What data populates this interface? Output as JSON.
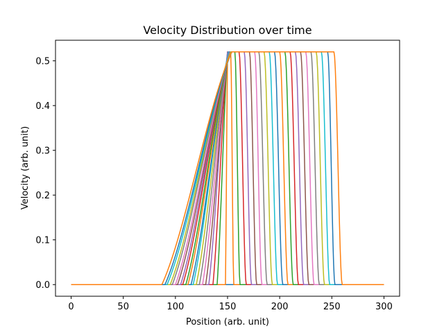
{
  "chart_data": {
    "type": "line",
    "title": "Velocity Distribution over time",
    "xlabel": "Position (arb. unit)",
    "ylabel": "Velocity (arb. unit)",
    "xlim": [
      -15,
      315
    ],
    "ylim": [
      -0.026,
      0.546
    ],
    "x_ticks": [
      0,
      50,
      100,
      150,
      200,
      250,
      300
    ],
    "y_ticks": [
      0.0,
      0.1,
      0.2,
      0.3,
      0.4,
      0.5
    ],
    "x_tick_labels": [
      "0",
      "50",
      "100",
      "150",
      "200",
      "250",
      "300"
    ],
    "y_tick_labels": [
      "0.0",
      "0.1",
      "0.2",
      "0.3",
      "0.4",
      "0.5"
    ],
    "grid": false,
    "legend": "none",
    "colors": [
      "#1f77b4",
      "#ff7f0e",
      "#2ca02c",
      "#d62728",
      "#9467bd",
      "#8c564b",
      "#e377c2",
      "#7f7f7f",
      "#bcbd22",
      "#17becf"
    ],
    "plateau_value": 0.52,
    "series": [
      {
        "x": [
          0,
          150,
          151,
          300
        ],
        "y": [
          0,
          0,
          0,
          0
        ]
      },
      {
        "x": [
          0,
          148,
          150,
          153,
          156,
          300
        ],
        "y": [
          0,
          0,
          0.52,
          0.52,
          0,
          0
        ]
      },
      {
        "x": [
          0,
          140,
          150,
          157,
          162,
          300
        ],
        "y": [
          0,
          0,
          0.52,
          0.52,
          0,
          0
        ]
      },
      {
        "x": [
          0,
          136,
          150,
          161,
          168,
          300
        ],
        "y": [
          0,
          0,
          0.52,
          0.52,
          0,
          0
        ]
      },
      {
        "x": [
          0,
          132,
          150,
          166,
          173,
          300
        ],
        "y": [
          0,
          0,
          0.52,
          0.52,
          0,
          0
        ]
      },
      {
        "x": [
          0,
          129,
          151,
          171,
          178,
          300
        ],
        "y": [
          0,
          0,
          0.52,
          0.52,
          0,
          0
        ]
      },
      {
        "x": [
          0,
          126,
          151,
          176,
          183,
          300
        ],
        "y": [
          0,
          0,
          0.52,
          0.52,
          0,
          0
        ]
      },
      {
        "x": [
          0,
          123,
          151,
          180,
          188,
          300
        ],
        "y": [
          0,
          0,
          0.52,
          0.52,
          0,
          0
        ]
      },
      {
        "x": [
          0,
          120,
          151,
          185,
          193,
          300
        ],
        "y": [
          0,
          0,
          0.52,
          0.52,
          0,
          0
        ]
      },
      {
        "x": [
          0,
          117,
          151,
          190,
          198,
          300
        ],
        "y": [
          0,
          0,
          0.52,
          0.52,
          0,
          0
        ]
      },
      {
        "x": [
          0,
          115,
          152,
          195,
          203,
          300
        ],
        "y": [
          0,
          0,
          0.52,
          0.52,
          0,
          0
        ]
      },
      {
        "x": [
          0,
          112,
          152,
          200,
          208,
          300
        ],
        "y": [
          0,
          0,
          0.52,
          0.52,
          0,
          0
        ]
      },
      {
        "x": [
          0,
          110,
          152,
          205,
          213,
          300
        ],
        "y": [
          0,
          0,
          0.52,
          0.52,
          0,
          0
        ]
      },
      {
        "x": [
          0,
          107,
          152,
          210,
          218,
          300
        ],
        "y": [
          0,
          0,
          0.52,
          0.52,
          0,
          0
        ]
      },
      {
        "x": [
          0,
          105,
          152,
          215,
          223,
          300
        ],
        "y": [
          0,
          0,
          0.52,
          0.52,
          0,
          0
        ]
      },
      {
        "x": [
          0,
          102,
          153,
          220,
          228,
          300
        ],
        "y": [
          0,
          0,
          0.52,
          0.52,
          0,
          0
        ]
      },
      {
        "x": [
          0,
          100,
          153,
          225,
          233,
          300
        ],
        "y": [
          0,
          0,
          0.52,
          0.52,
          0,
          0
        ]
      },
      {
        "x": [
          0,
          97,
          153,
          230,
          238,
          300
        ],
        "y": [
          0,
          0,
          0.52,
          0.52,
          0,
          0
        ]
      },
      {
        "x": [
          0,
          95,
          153,
          235,
          243,
          300
        ],
        "y": [
          0,
          0,
          0.52,
          0.52,
          0,
          0
        ]
      },
      {
        "x": [
          0,
          92,
          154,
          240,
          248,
          300
        ],
        "y": [
          0,
          0,
          0.52,
          0.52,
          0,
          0
        ]
      },
      {
        "x": [
          0,
          90,
          154,
          246,
          253,
          300
        ],
        "y": [
          0,
          0,
          0.52,
          0.52,
          0,
          0
        ]
      },
      {
        "x": [
          0,
          87,
          154,
          252,
          260,
          300
        ],
        "y": [
          0,
          0,
          0.52,
          0.52,
          0,
          0
        ]
      }
    ]
  }
}
